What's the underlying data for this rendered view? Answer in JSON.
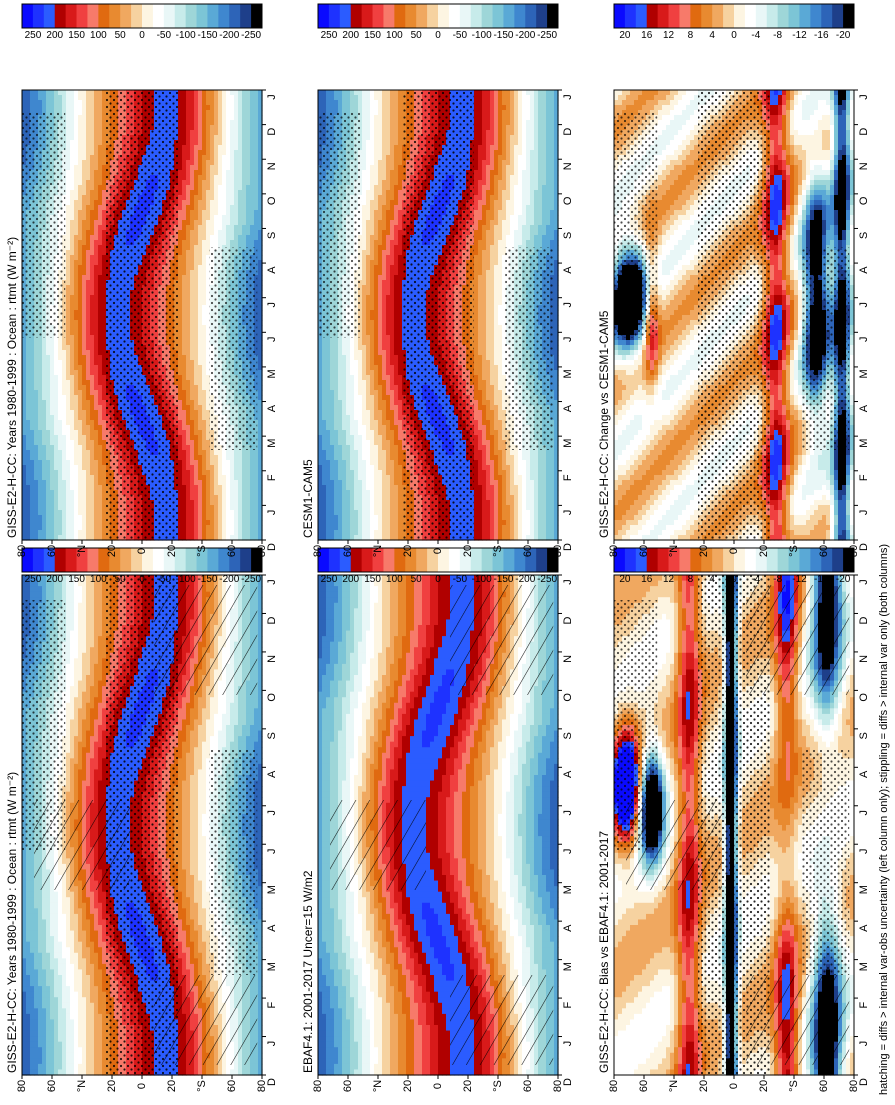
{
  "figure": {
    "footnote": "hatching = diffs > internal var-obs uncertainty (left column only); stippling = diffs > internal var only (both columns)"
  },
  "colors": {
    "diverging": [
      "#0a0aff",
      "#1e32ff",
      "#2b5cff",
      "#b00000",
      "#d81a1a",
      "#f04040",
      "#f77a6a",
      "#e06a10",
      "#e88a30",
      "#f0a860",
      "#f6d2a0",
      "#fdf5e2",
      "#ffffff",
      "#e9f7f7",
      "#c7ebea",
      "#9ed6d8",
      "#7cc5d6",
      "#5aa9d6",
      "#3f87cf",
      "#2d64b8",
      "#1e3f8a",
      "#000000"
    ]
  },
  "chart_data": [
    {
      "id": "p1",
      "type": "heatmap",
      "title": "GISS-E2-H-CC: Years 1980-1999 : Ocean : rtmt (W m⁻²)",
      "months": [
        "D",
        "J",
        "F",
        "M",
        "A",
        "M",
        "J",
        "J",
        "A",
        "S",
        "O",
        "N",
        "D",
        "J"
      ],
      "lat_ticks": [
        "80",
        "60",
        "°N",
        "20",
        "0",
        "20",
        "°S",
        "60",
        "80"
      ],
      "lat_range": [
        80,
        -80
      ],
      "field": "rtmt",
      "amplitude": 250,
      "hatching": true,
      "stippling": true,
      "colorbar": [
        "250",
        "200",
        "150",
        "100",
        "50",
        "0",
        "-50",
        "-100",
        "-150",
        "-200",
        "-250"
      ]
    },
    {
      "id": "p2",
      "type": "heatmap",
      "title": "GISS-E2-H-CC: Years 1980-1999 : Ocean : rtmt (W m⁻²)",
      "months": [
        "D",
        "J",
        "F",
        "M",
        "A",
        "M",
        "J",
        "J",
        "A",
        "S",
        "O",
        "N",
        "D",
        "J"
      ],
      "lat_ticks": [
        "80",
        "60",
        "°N",
        "20",
        "0",
        "20",
        "°S",
        "60",
        "80"
      ],
      "lat_range": [
        80,
        -80
      ],
      "field": "rtmt",
      "amplitude": 250,
      "hatching": false,
      "stippling": true,
      "colorbar": [
        "250",
        "200",
        "150",
        "100",
        "50",
        "0",
        "-50",
        "-100",
        "-150",
        "-200",
        "-250"
      ]
    },
    {
      "id": "p3",
      "type": "heatmap",
      "title": "EBAF4.1: 2001-2017 Uncer=15 W/m2",
      "months": [
        "D",
        "J",
        "F",
        "M",
        "A",
        "M",
        "J",
        "J",
        "A",
        "S",
        "O",
        "N",
        "D",
        "J"
      ],
      "lat_ticks": [
        "80",
        "60",
        "°N",
        "20",
        "0",
        "20",
        "°S",
        "60",
        "80"
      ],
      "lat_range": [
        80,
        -80
      ],
      "field": "rtmt",
      "amplitude": 250,
      "hatching": true,
      "stippling": false,
      "colorbar": [
        "250",
        "200",
        "150",
        "100",
        "50",
        "0",
        "-50",
        "-100",
        "-150",
        "-200",
        "-250"
      ]
    },
    {
      "id": "p4",
      "type": "heatmap",
      "title": "CESM1-CAM5",
      "months": [
        "D",
        "J",
        "F",
        "M",
        "A",
        "M",
        "J",
        "J",
        "A",
        "S",
        "O",
        "N",
        "D",
        "J"
      ],
      "lat_ticks": [
        "80",
        "60",
        "°N",
        "20",
        "0",
        "20",
        "°S",
        "60",
        "80"
      ],
      "lat_range": [
        80,
        -80
      ],
      "field": "rtmt",
      "amplitude": 250,
      "hatching": false,
      "stippling": true,
      "colorbar": [
        "250",
        "200",
        "150",
        "100",
        "50",
        "0",
        "-50",
        "-100",
        "-150",
        "-200",
        "-250"
      ]
    },
    {
      "id": "p5",
      "type": "heatmap",
      "title": "GISS-E2-H-CC: Bias vs EBAF4.1: 2001-2017",
      "months": [
        "D",
        "J",
        "F",
        "M",
        "A",
        "M",
        "J",
        "J",
        "A",
        "S",
        "O",
        "N",
        "D",
        "J"
      ],
      "lat_ticks": [
        "80",
        "60",
        "°N",
        "20",
        "0",
        "20",
        "°S",
        "60",
        "80"
      ],
      "lat_range": [
        80,
        -80
      ],
      "field": "bias",
      "amplitude": 20,
      "hatching": true,
      "stippling": true,
      "colorbar": [
        "20",
        "16",
        "12",
        "8",
        "4",
        "0",
        "-4",
        "-8",
        "-12",
        "-16",
        "-20"
      ]
    },
    {
      "id": "p6",
      "type": "heatmap",
      "title": "GISS-E2-H-CC: Change vs CESM1-CAM5",
      "months": [
        "D",
        "J",
        "F",
        "M",
        "A",
        "M",
        "J",
        "J",
        "A",
        "S",
        "O",
        "N",
        "D",
        "J"
      ],
      "lat_ticks": [
        "80",
        "60",
        "°N",
        "20",
        "0",
        "20",
        "°S",
        "60",
        "80"
      ],
      "lat_range": [
        80,
        -80
      ],
      "field": "change",
      "amplitude": 20,
      "hatching": false,
      "stippling": true,
      "colorbar": [
        "20",
        "16",
        "12",
        "8",
        "4",
        "0",
        "-4",
        "-8",
        "-12",
        "-16",
        "-20"
      ]
    }
  ]
}
